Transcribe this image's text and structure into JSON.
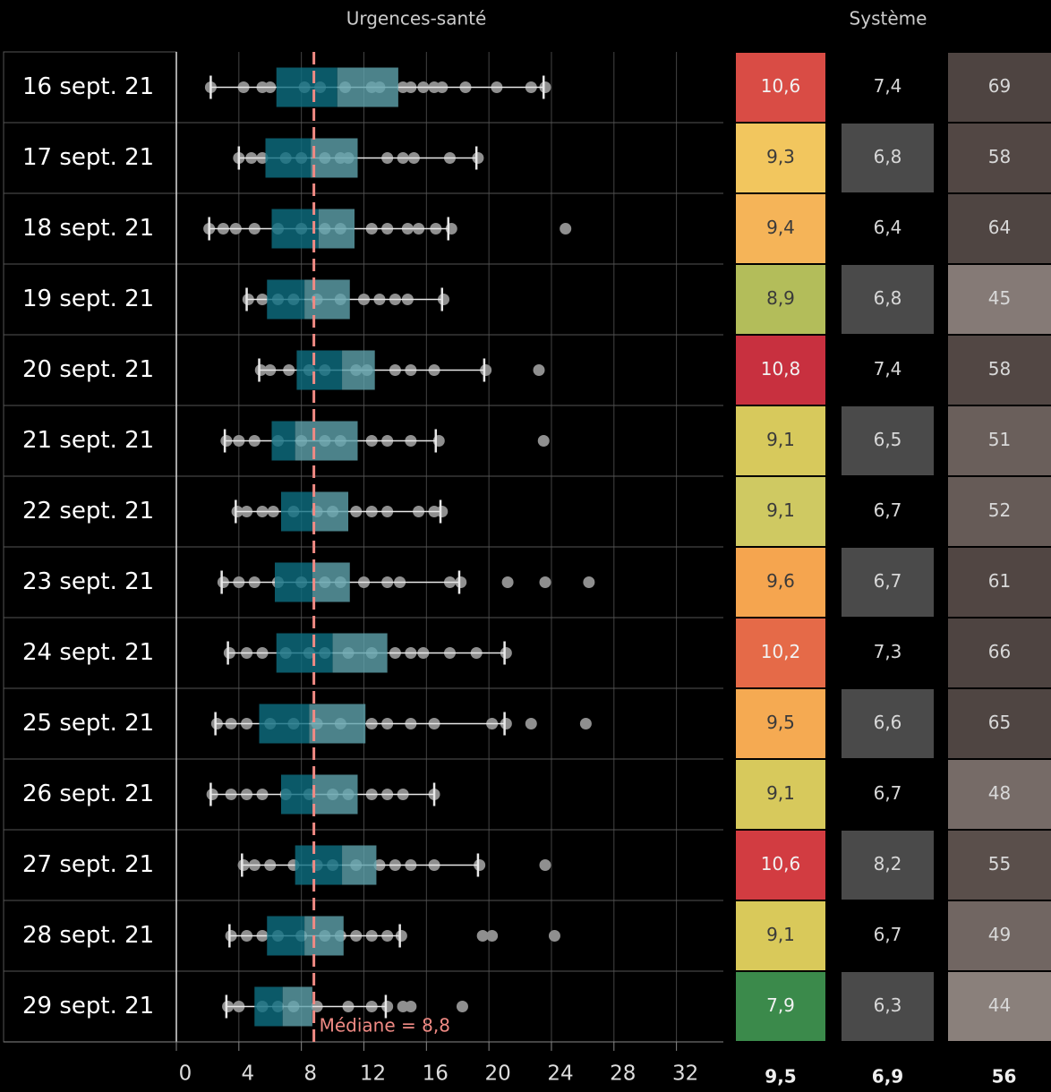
{
  "chart_data": {
    "type": "box",
    "title": "Urgences-santé",
    "categories": [
      "16 sept. 21",
      "17 sept. 21",
      "18 sept. 21",
      "19 sept. 21",
      "20 sept. 21",
      "21 sept. 21",
      "22 sept. 21",
      "23 sept. 21",
      "24 sept. 21",
      "25 sept. 21",
      "26 sept. 21",
      "27 sept. 21",
      "28 sept. 21",
      "29 sept. 21"
    ],
    "whisker_low": [
      2.2,
      4.0,
      2.1,
      4.5,
      5.3,
      3.1,
      3.8,
      2.9,
      3.3,
      2.5,
      2.2,
      4.2,
      3.4,
      3.2
    ],
    "q1": [
      6.4,
      5.7,
      6.1,
      5.8,
      7.7,
      6.1,
      6.7,
      6.3,
      6.4,
      5.3,
      6.7,
      7.6,
      5.8,
      5.0
    ],
    "median": [
      10.3,
      8.6,
      9.1,
      8.2,
      10.6,
      7.6,
      8.7,
      8.7,
      10.0,
      8.5,
      8.7,
      10.6,
      8.2,
      6.8
    ],
    "q3": [
      14.2,
      11.6,
      11.4,
      11.1,
      12.7,
      11.6,
      11.0,
      11.1,
      13.5,
      12.1,
      11.6,
      12.8,
      10.7,
      8.7
    ],
    "whisker_high": [
      23.5,
      19.2,
      17.4,
      17.0,
      19.7,
      16.6,
      16.9,
      18.1,
      21.0,
      21.0,
      16.5,
      19.3,
      14.3,
      13.4
    ],
    "points": [
      [
        2.2,
        4.3,
        5.5,
        6.0,
        8.2,
        9.2,
        10.8,
        12.5,
        13.0,
        14.5,
        15.0,
        15.8,
        16.5,
        17.0,
        18.5,
        20.5,
        22.7,
        23.6
      ],
      [
        4.0,
        4.8,
        5.5,
        7.0,
        8.0,
        9.5,
        10.5,
        11.0,
        13.5,
        14.5,
        15.2,
        17.5,
        19.3
      ],
      [
        2.1,
        3.0,
        3.8,
        5.0,
        6.5,
        8.0,
        9.5,
        10.5,
        12.5,
        13.5,
        14.8,
        15.5,
        16.6,
        17.6,
        24.9
      ],
      [
        4.6,
        5.5,
        6.5,
        7.5,
        9.0,
        10.5,
        12.0,
        13.0,
        14.0,
        14.8,
        17.1
      ],
      [
        5.4,
        6.0,
        7.2,
        8.5,
        9.5,
        11.5,
        12.2,
        14.0,
        15.0,
        16.5,
        19.8,
        23.2
      ],
      [
        3.2,
        4.0,
        5.0,
        6.5,
        8.0,
        9.5,
        10.5,
        12.5,
        13.5,
        15.0,
        16.8,
        23.5
      ],
      [
        3.9,
        4.5,
        5.5,
        6.2,
        7.5,
        9.0,
        10.0,
        11.5,
        12.5,
        13.5,
        15.5,
        16.5,
        17.0
      ],
      [
        3.0,
        4.0,
        5.0,
        6.5,
        8.0,
        9.5,
        10.5,
        12.0,
        13.5,
        14.3,
        17.5,
        18.2,
        21.2,
        23.6,
        26.4
      ],
      [
        3.4,
        4.5,
        5.5,
        7.0,
        8.5,
        9.5,
        11.0,
        12.5,
        14.0,
        15.0,
        15.8,
        17.5,
        19.2,
        21.1
      ],
      [
        2.6,
        3.5,
        4.5,
        6.0,
        7.5,
        9.0,
        10.5,
        12.5,
        13.5,
        15.0,
        16.5,
        20.2,
        21.1,
        22.7,
        26.2
      ],
      [
        2.3,
        3.5,
        4.5,
        5.5,
        7.0,
        8.5,
        10.0,
        11.0,
        12.5,
        13.5,
        14.5,
        16.5
      ],
      [
        4.3,
        5.0,
        6.0,
        7.5,
        9.0,
        10.0,
        11.5,
        13.0,
        14.0,
        15.0,
        16.5,
        19.4,
        23.6
      ],
      [
        3.5,
        4.5,
        5.5,
        6.5,
        8.0,
        9.5,
        10.5,
        11.5,
        12.5,
        13.5,
        14.4,
        19.6,
        20.2,
        24.2
      ],
      [
        3.3,
        4.0,
        5.5,
        6.5,
        7.5,
        9.0,
        11.0,
        12.5,
        13.5,
        14.5,
        15.0,
        18.3
      ]
    ],
    "box_colors": [
      "#0e6f82",
      "#5fa3ad"
    ],
    "point_color": "#8f8f8f",
    "whisker_color": "#e8e8e8",
    "xlim": [
      0,
      35
    ],
    "xticks": [
      0,
      4,
      8,
      12,
      16,
      20,
      24,
      28,
      32
    ],
    "grid": true,
    "reference_line": {
      "value": 8.8,
      "label": "Médiane = 8,8",
      "color": "#f08a84"
    }
  },
  "table_columns": [
    {
      "values": [
        10.6,
        9.3,
        9.4,
        8.9,
        10.8,
        9.1,
        9.1,
        9.6,
        10.2,
        9.5,
        9.1,
        10.6,
        9.1,
        7.9
      ],
      "value_labels": [
        "10,6",
        "9,3",
        "9,4",
        "8,9",
        "10,8",
        "9,1",
        "9,1",
        "9,6",
        "10,2",
        "9,5",
        "9,1",
        "10,6",
        "9,1",
        "7,9"
      ],
      "colors": [
        "#d94c45",
        "#f2c65e",
        "#f5b458",
        "#b3bd5a",
        "#c8303f",
        "#d7c95c",
        "#cfc962",
        "#f5a54f",
        "#e56a48",
        "#f5aa52",
        "#d7c95c",
        "#d23c41",
        "#d9c95a",
        "#3b8a4b"
      ],
      "total": 9.5,
      "total_label": "9,5"
    },
    {
      "title": "Système",
      "values": [
        7.4,
        6.8,
        6.4,
        6.8,
        7.4,
        6.5,
        6.7,
        6.7,
        7.3,
        6.6,
        6.7,
        8.2,
        6.7,
        6.3
      ],
      "value_labels": [
        "7,4",
        "6,8",
        "6,4",
        "6,8",
        "7,4",
        "6,5",
        "6,7",
        "6,7",
        "7,3",
        "6,6",
        "6,7",
        "8,2",
        "6,7",
        "6,3"
      ],
      "colors": [
        "#000000",
        "#4a4a4a",
        "#000000",
        "#4a4a4a",
        "#000000",
        "#4a4a4a",
        "#000000",
        "#4a4a4a",
        "#000000",
        "#4a4a4a",
        "#000000",
        "#4a4a4a",
        "#000000",
        "#4a4a4a"
      ],
      "total": 6.9,
      "total_label": "6,9"
    },
    {
      "values": [
        69,
        58,
        64,
        45,
        58,
        51,
        52,
        61,
        66,
        65,
        48,
        55,
        49,
        44
      ],
      "colors": [
        "#4e4441",
        "#524744",
        "#4f4542",
        "#857a76",
        "#524744",
        "#6a5f5b",
        "#665b57",
        "#514643",
        "#4e4441",
        "#4f4542",
        "#766b67",
        "#5a4f4b",
        "#716662",
        "#8a807b"
      ],
      "total": 56
    }
  ]
}
